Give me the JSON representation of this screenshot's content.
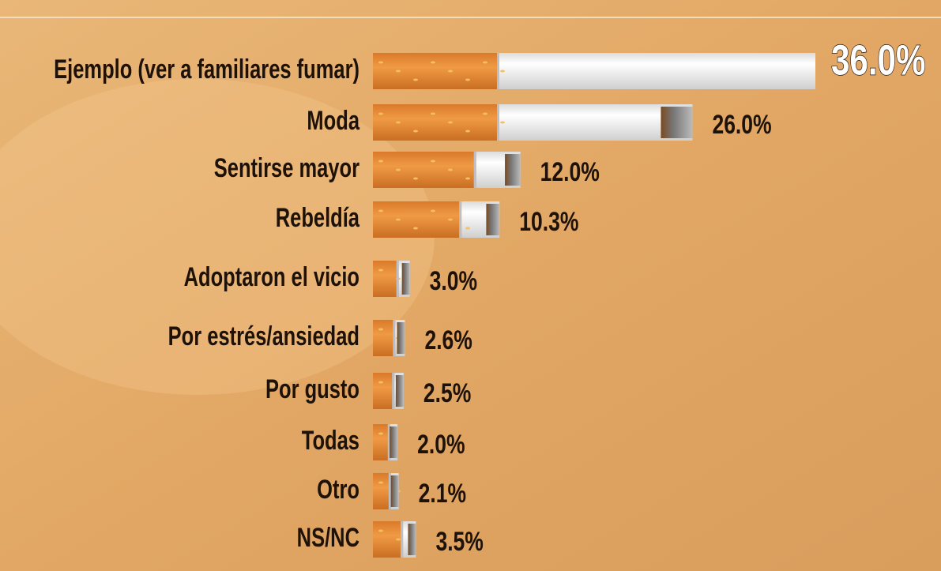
{
  "chart_data": {
    "type": "bar",
    "orientation": "horizontal",
    "categories": [
      "Ejemplo (ver a familiares fumar)",
      "Moda",
      "Sentirse mayor",
      "Rebeldía",
      "Adoptaron el vicio",
      "Por estrés/ansiedad",
      "Por gusto",
      "Todas",
      "Otro",
      "NS/NC"
    ],
    "values": [
      36,
      26,
      12,
      10.3,
      3,
      2.6,
      2.5,
      2,
      2.1,
      3.5
    ],
    "value_labels": [
      "36.0%",
      "26.0%",
      "12.0%",
      "10.3%",
      "3.0%",
      "2.6%",
      "2.5%",
      "2.0%",
      "2.1%",
      "3.5%"
    ],
    "color": "#e98f3c"
  }
}
